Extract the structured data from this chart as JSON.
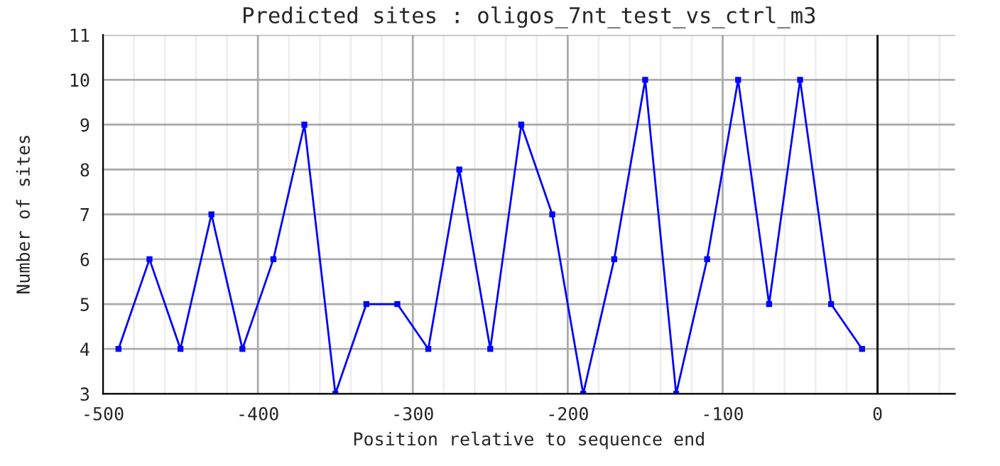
{
  "chart_data": {
    "type": "line",
    "title": "Predicted sites : oligos_7nt_test_vs_ctrl_m3",
    "xlabel": "Position relative to sequence end",
    "ylabel": "Number of sites",
    "x": [
      -490,
      -470,
      -450,
      -430,
      -410,
      -390,
      -370,
      -350,
      -330,
      -310,
      -290,
      -270,
      -250,
      -230,
      -210,
      -190,
      -170,
      -150,
      -130,
      -110,
      -90,
      -70,
      -50,
      -30,
      -10
    ],
    "series": [
      {
        "color": "#0000ff",
        "values": [
          4,
          6,
          4,
          7,
          4,
          6,
          9,
          3,
          5,
          5,
          4,
          8,
          4,
          9,
          7,
          3,
          6,
          10,
          3,
          6,
          10,
          5,
          10,
          5,
          4
        ]
      }
    ],
    "xlim": [
      -500,
      50
    ],
    "xticks": [
      -500,
      -400,
      -300,
      -200,
      -100,
      0
    ],
    "ylim": [
      3,
      11
    ],
    "yticks": [
      3,
      4,
      5,
      6,
      7,
      8,
      9,
      10,
      11
    ],
    "grid": true,
    "marker": "square",
    "line_style": "solid",
    "legend": false,
    "ref_lines": [
      {
        "axis": "x",
        "value": 0,
        "color": "#000000",
        "line_style": "solid"
      }
    ]
  }
}
